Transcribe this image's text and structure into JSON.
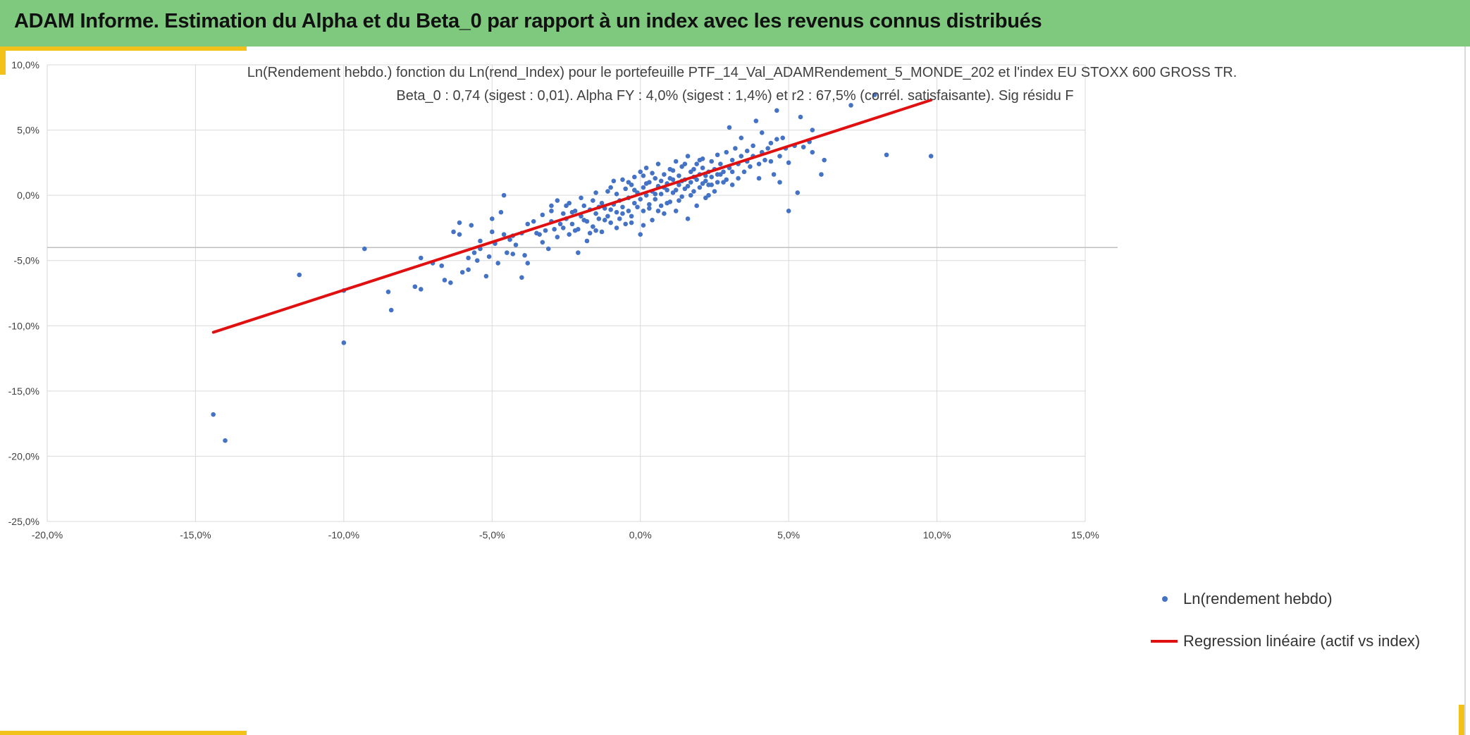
{
  "banner": {
    "title": "ADAM Informe. Estimation du Alpha et du Beta_0 par rapport à un index avec les revenus connus distribués"
  },
  "colors": {
    "banner": "#7fc97f",
    "accent": "#f2c21b",
    "points": "#4472c4",
    "regression": "#e01010",
    "grid": "#d9d9d9"
  },
  "chart_data": {
    "type": "scatter",
    "title": "Ln(Rendement hebdo.) fonction du Ln(rend_Index) pour le portefeuille PTF_14_Val_ADAMRendement_5_MONDE_202 et l'index EU STOXX 600 GROSS TR.",
    "subtitle": "Beta_0 : 0,74 (sigest : 0,01). Alpha FY : 4,0% (sigest : 1,4%) et r2 : 67,5% (corrél. satisfaisante). Sig résidu F",
    "xlim": [
      -0.2,
      0.15
    ],
    "ylim": [
      -0.25,
      0.1
    ],
    "x_ticks": [
      -0.2,
      -0.15,
      -0.1,
      -0.05,
      0.0,
      0.05,
      0.1,
      0.15
    ],
    "x_tick_labels": [
      "-20,0%",
      "-15,0%",
      "-10,0%",
      "-5,0%",
      "0,0%",
      "5,0%",
      "10,0%",
      "15,0%"
    ],
    "y_ticks": [
      0.1,
      0.05,
      0.0,
      -0.05,
      -0.1,
      -0.15,
      -0.2,
      -0.25
    ],
    "y_tick_labels": [
      "10,0%",
      "5,0%",
      "0,0%",
      "-5,0%",
      "-10,0%",
      "-15,0%",
      "-20,0%",
      "-25,0%"
    ],
    "grid": true,
    "legend_position": "bottom-right",
    "legend": {
      "points": "Ln(rendement hebdo)",
      "regression": "Regression linéaire (actif vs index)"
    },
    "regression": {
      "x": [
        -0.144,
        0.098
      ],
      "y": [
        -0.105,
        0.073
      ]
    },
    "series": [
      {
        "name": "Ln(rendement hebdo)",
        "points": [
          [
            -0.144,
            -0.168
          ],
          [
            -0.14,
            -0.188
          ],
          [
            -0.115,
            -0.061
          ],
          [
            -0.1,
            -0.113
          ],
          [
            -0.1,
            -0.073
          ],
          [
            -0.093,
            -0.041
          ],
          [
            -0.085,
            -0.074
          ],
          [
            -0.084,
            -0.088
          ],
          [
            -0.076,
            -0.07
          ],
          [
            -0.074,
            -0.072
          ],
          [
            -0.074,
            -0.048
          ],
          [
            -0.07,
            -0.052
          ],
          [
            -0.067,
            -0.054
          ],
          [
            -0.066,
            -0.065
          ],
          [
            -0.064,
            -0.067
          ],
          [
            -0.063,
            -0.028
          ],
          [
            -0.061,
            -0.021
          ],
          [
            -0.061,
            -0.03
          ],
          [
            -0.06,
            -0.059
          ],
          [
            -0.058,
            -0.048
          ],
          [
            -0.058,
            -0.057
          ],
          [
            -0.057,
            -0.023
          ],
          [
            -0.056,
            -0.044
          ],
          [
            -0.055,
            -0.05
          ],
          [
            -0.054,
            -0.035
          ],
          [
            -0.054,
            -0.041
          ],
          [
            -0.052,
            -0.062
          ],
          [
            -0.051,
            -0.047
          ],
          [
            -0.05,
            -0.018
          ],
          [
            -0.05,
            -0.028
          ],
          [
            -0.049,
            -0.037
          ],
          [
            -0.048,
            -0.052
          ],
          [
            -0.047,
            -0.013
          ],
          [
            -0.046,
            -0.03
          ],
          [
            -0.045,
            -0.044
          ],
          [
            -0.044,
            -0.034
          ],
          [
            -0.043,
            -0.031
          ],
          [
            -0.043,
            -0.045
          ],
          [
            -0.042,
            -0.038
          ],
          [
            -0.04,
            -0.029
          ],
          [
            -0.039,
            -0.046
          ],
          [
            -0.038,
            -0.022
          ],
          [
            -0.046,
            0.0
          ],
          [
            -0.04,
            -0.063
          ],
          [
            -0.038,
            -0.052
          ],
          [
            -0.036,
            -0.02
          ],
          [
            -0.035,
            -0.029
          ],
          [
            -0.034,
            -0.03
          ],
          [
            -0.033,
            -0.036
          ],
          [
            -0.033,
            -0.015
          ],
          [
            -0.032,
            -0.027
          ],
          [
            -0.031,
            -0.041
          ],
          [
            -0.03,
            -0.02
          ],
          [
            -0.03,
            -0.008
          ],
          [
            -0.029,
            -0.026
          ],
          [
            -0.028,
            -0.032
          ],
          [
            -0.027,
            -0.022
          ],
          [
            -0.026,
            -0.014
          ],
          [
            -0.025,
            -0.018
          ],
          [
            -0.024,
            -0.03
          ],
          [
            -0.024,
            -0.006
          ],
          [
            -0.023,
            -0.022
          ],
          [
            -0.022,
            -0.012
          ],
          [
            -0.021,
            -0.044
          ],
          [
            -0.021,
            -0.026
          ],
          [
            -0.02,
            -0.016
          ],
          [
            -0.019,
            -0.008
          ],
          [
            -0.018,
            -0.02
          ],
          [
            -0.018,
            -0.035
          ],
          [
            -0.017,
            -0.011
          ],
          [
            -0.016,
            -0.024
          ],
          [
            -0.016,
            -0.004
          ],
          [
            -0.015,
            -0.014
          ],
          [
            -0.014,
            -0.018
          ],
          [
            -0.013,
            -0.006
          ],
          [
            -0.013,
            -0.028
          ],
          [
            -0.012,
            -0.01
          ],
          [
            -0.011,
            0.003
          ],
          [
            -0.011,
            -0.016
          ],
          [
            -0.01,
            -0.021
          ],
          [
            -0.009,
            -0.007
          ],
          [
            -0.009,
            0.011
          ],
          [
            -0.008,
            -0.013
          ],
          [
            -0.008,
            0.001
          ],
          [
            -0.007,
            -0.018
          ],
          [
            -0.007,
            -0.004
          ],
          [
            -0.006,
            -0.009
          ],
          [
            -0.005,
            0.005
          ],
          [
            -0.005,
            -0.022
          ],
          [
            -0.004,
            -0.012
          ],
          [
            -0.004,
            -0.002
          ],
          [
            -0.003,
            0.008
          ],
          [
            -0.003,
            -0.016
          ],
          [
            -0.002,
            -0.006
          ],
          [
            -0.002,
            0.014
          ],
          [
            -0.001,
            -0.009
          ],
          [
            -0.001,
            0.002
          ],
          [
            0.0,
            -0.003
          ],
          [
            0.0,
            0.018
          ],
          [
            0.0,
            -0.03
          ],
          [
            0.001,
            -0.012
          ],
          [
            0.001,
            0.006
          ],
          [
            0.002,
            0.0
          ],
          [
            0.002,
            0.021
          ],
          [
            0.003,
            -0.007
          ],
          [
            0.003,
            0.01
          ],
          [
            0.004,
            0.003
          ],
          [
            0.004,
            -0.019
          ],
          [
            0.005,
            0.013
          ],
          [
            0.005,
            -0.003
          ],
          [
            0.006,
            0.007
          ],
          [
            0.006,
            0.024
          ],
          [
            0.007,
            -0.008
          ],
          [
            0.007,
            0.001
          ],
          [
            0.008,
            0.016
          ],
          [
            0.008,
            -0.014
          ],
          [
            0.009,
            0.009
          ],
          [
            0.009,
            0.004
          ],
          [
            0.01,
            0.02
          ],
          [
            0.01,
            -0.005
          ],
          [
            0.011,
            0.012
          ],
          [
            0.011,
            0.002
          ],
          [
            0.012,
            0.026
          ],
          [
            0.012,
            -0.012
          ],
          [
            0.013,
            0.008
          ],
          [
            0.013,
            0.015
          ],
          [
            0.014,
            -0.001
          ],
          [
            0.014,
            0.022
          ],
          [
            0.015,
            0.005
          ],
          [
            0.015,
            0.012
          ],
          [
            0.016,
            0.03
          ],
          [
            0.016,
            -0.018
          ],
          [
            0.017,
            0.01
          ],
          [
            0.017,
            0.018
          ],
          [
            0.018,
            0.003
          ],
          [
            0.018,
            0.014
          ],
          [
            0.019,
            0.024
          ],
          [
            0.019,
            -0.008
          ],
          [
            0.02,
            0.016
          ],
          [
            0.02,
            0.006
          ],
          [
            0.021,
            0.021
          ],
          [
            0.021,
            0.028
          ],
          [
            0.022,
            0.011
          ],
          [
            0.022,
            -0.002
          ],
          [
            0.023,
            0.018
          ],
          [
            0.023,
            0.008
          ],
          [
            0.024,
            0.026
          ],
          [
            0.024,
            0.014
          ],
          [
            0.025,
            0.02
          ],
          [
            0.025,
            0.003
          ],
          [
            0.026,
            0.031
          ],
          [
            0.026,
            0.016
          ],
          [
            0.027,
            0.024
          ],
          [
            0.028,
            0.01
          ],
          [
            0.028,
            0.018
          ],
          [
            0.029,
            0.033
          ],
          [
            0.03,
            0.021
          ],
          [
            0.03,
            0.052
          ],
          [
            0.031,
            0.008
          ],
          [
            0.031,
            0.027
          ],
          [
            0.032,
            0.036
          ],
          [
            0.033,
            0.024
          ],
          [
            0.033,
            0.013
          ],
          [
            0.034,
            0.03
          ],
          [
            0.034,
            0.044
          ],
          [
            0.035,
            0.018
          ],
          [
            0.036,
            0.034
          ],
          [
            0.036,
            0.026
          ],
          [
            0.037,
            0.022
          ],
          [
            0.038,
            0.038
          ],
          [
            0.038,
            0.03
          ],
          [
            0.039,
            0.057
          ],
          [
            0.04,
            0.024
          ],
          [
            0.04,
            0.013
          ],
          [
            0.041,
            0.033
          ],
          [
            0.041,
            0.048
          ],
          [
            0.042,
            0.027
          ],
          [
            0.043,
            0.036
          ],
          [
            0.044,
            0.04
          ],
          [
            0.044,
            0.026
          ],
          [
            0.045,
            0.016
          ],
          [
            0.046,
            0.043
          ],
          [
            0.046,
            0.065
          ],
          [
            0.047,
            0.01
          ],
          [
            0.047,
            0.03
          ],
          [
            0.048,
            0.044
          ],
          [
            0.049,
            0.036
          ],
          [
            0.05,
            0.025
          ],
          [
            0.05,
            -0.012
          ],
          [
            0.052,
            0.038
          ],
          [
            0.053,
            0.002
          ],
          [
            0.054,
            0.06
          ],
          [
            0.055,
            0.037
          ],
          [
            0.057,
            0.041
          ],
          [
            0.058,
            0.05
          ],
          [
            0.058,
            0.033
          ],
          [
            0.061,
            0.016
          ],
          [
            0.062,
            0.027
          ],
          [
            0.071,
            0.069
          ],
          [
            0.079,
            0.077
          ],
          [
            0.083,
            0.031
          ],
          [
            0.098,
            0.03
          ],
          [
            -0.03,
            -0.012
          ],
          [
            -0.028,
            -0.004
          ],
          [
            -0.026,
            -0.025
          ],
          [
            -0.025,
            -0.008
          ],
          [
            -0.023,
            -0.013
          ],
          [
            -0.022,
            -0.027
          ],
          [
            -0.02,
            -0.002
          ],
          [
            -0.019,
            -0.019
          ],
          [
            -0.017,
            -0.029
          ],
          [
            -0.015,
            0.002
          ],
          [
            -0.015,
            -0.027
          ],
          [
            -0.014,
            -0.009
          ],
          [
            -0.012,
            -0.019
          ],
          [
            -0.01,
            0.006
          ],
          [
            -0.01,
            -0.011
          ],
          [
            -0.008,
            -0.025
          ],
          [
            -0.006,
            0.012
          ],
          [
            -0.006,
            -0.014
          ],
          [
            -0.004,
            0.01
          ],
          [
            -0.003,
            -0.021
          ],
          [
            -0.002,
            0.004
          ],
          [
            0.001,
            0.015
          ],
          [
            0.001,
            -0.023
          ],
          [
            0.002,
            0.009
          ],
          [
            0.003,
            -0.01
          ],
          [
            0.004,
            0.017
          ],
          [
            0.005,
            0.001
          ],
          [
            0.006,
            -0.012
          ],
          [
            0.007,
            0.011
          ],
          [
            0.008,
            0.006
          ],
          [
            0.009,
            -0.006
          ],
          [
            0.01,
            0.013
          ],
          [
            0.011,
            0.019
          ],
          [
            0.012,
            0.004
          ],
          [
            0.013,
            -0.004
          ],
          [
            0.014,
            0.011
          ],
          [
            0.015,
            0.024
          ],
          [
            0.016,
            0.007
          ],
          [
            0.017,
            0.0
          ],
          [
            0.018,
            0.02
          ],
          [
            0.019,
            0.012
          ],
          [
            0.02,
            0.027
          ],
          [
            0.021,
            0.009
          ],
          [
            0.022,
            0.015
          ],
          [
            0.023,
            0.0
          ],
          [
            0.024,
            0.008
          ],
          [
            0.026,
            0.01
          ],
          [
            0.027,
            0.016
          ],
          [
            0.029,
            0.012
          ],
          [
            0.031,
            0.018
          ]
        ]
      }
    ]
  }
}
